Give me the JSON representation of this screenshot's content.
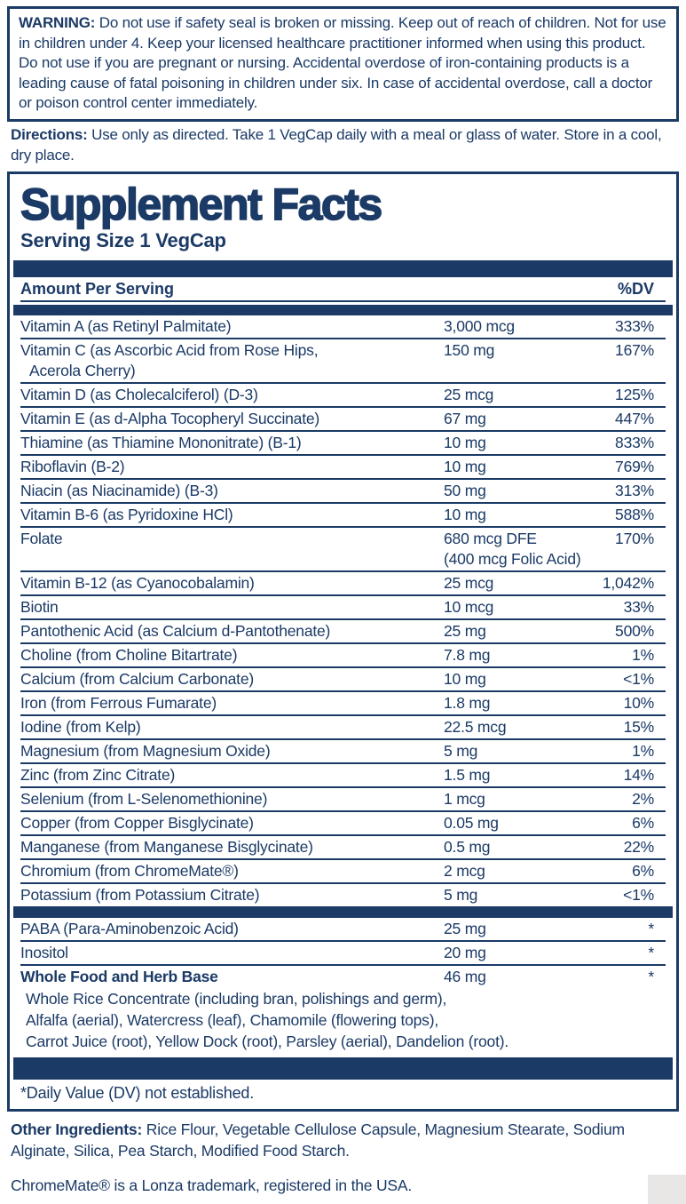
{
  "colors": {
    "navy": "#1b3a66",
    "corner_swatch": "#e8e7e5"
  },
  "warning": {
    "label": "WARNING:",
    "text": "Do not use if safety seal is broken or missing. Keep out of reach of children. Not for use in children under 4. Keep your licensed healthcare practitioner informed when using this product. Do not use if you are pregnant or nursing. Accidental overdose of iron-containing products is a leading cause of fatal poisoning in children under six. In case of accidental overdose, call a doctor or poison control center immediately."
  },
  "directions": {
    "label": "Directions:",
    "text": "Use only as directed. Take 1 VegCap daily with a meal or glass of water. Store in a cool, dry place."
  },
  "supplement_facts": {
    "title": "Supplement Facts",
    "serving_size": "Serving Size 1 VegCap",
    "header": {
      "amount_per_serving": "Amount Per Serving",
      "dv": "%DV"
    },
    "rows": [
      {
        "name": [
          "Vitamin A (as Retinyl Palmitate)"
        ],
        "amount": [
          "3,000 mcg"
        ],
        "dv": "333%"
      },
      {
        "name": [
          "Vitamin C (as Ascorbic Acid from Rose Hips,",
          "Acerola Cherry)"
        ],
        "amount": [
          "150 mg"
        ],
        "dv": "167%"
      },
      {
        "name": [
          "Vitamin D (as Cholecalciferol) (D-3)"
        ],
        "amount": [
          "25 mcg"
        ],
        "dv": "125%"
      },
      {
        "name": [
          "Vitamin E (as d-Alpha Tocopheryl Succinate)"
        ],
        "amount": [
          "67 mg"
        ],
        "dv": "447%"
      },
      {
        "name": [
          "Thiamine (as Thiamine Mononitrate) (B-1)"
        ],
        "amount": [
          "10 mg"
        ],
        "dv": "833%"
      },
      {
        "name": [
          "Riboflavin (B-2)"
        ],
        "amount": [
          "10 mg"
        ],
        "dv": "769%"
      },
      {
        "name": [
          "Niacin (as Niacinamide) (B-3)"
        ],
        "amount": [
          "50 mg"
        ],
        "dv": "313%"
      },
      {
        "name": [
          "Vitamin B-6 (as Pyridoxine HCl)"
        ],
        "amount": [
          "10 mg"
        ],
        "dv": "588%"
      },
      {
        "name": [
          "Folate"
        ],
        "amount": [
          "680 mcg DFE",
          "(400 mcg Folic Acid)"
        ],
        "dv": "170%"
      },
      {
        "name": [
          "Vitamin B-12 (as Cyanocobalamin)"
        ],
        "amount": [
          "25 mcg"
        ],
        "dv": "1,042%"
      },
      {
        "name": [
          "Biotin"
        ],
        "amount": [
          "10 mcg"
        ],
        "dv": "33%"
      },
      {
        "name": [
          "Pantothenic Acid (as Calcium d-Pantothenate)"
        ],
        "amount": [
          "25 mg"
        ],
        "dv": "500%"
      },
      {
        "name": [
          "Choline (from Choline Bitartrate)"
        ],
        "amount": [
          "7.8 mg"
        ],
        "dv": "1%"
      },
      {
        "name": [
          "Calcium (from Calcium Carbonate)"
        ],
        "amount": [
          "10 mg"
        ],
        "dv": "<1%"
      },
      {
        "name": [
          "Iron (from Ferrous Fumarate)"
        ],
        "amount": [
          "1.8 mg"
        ],
        "dv": "10%"
      },
      {
        "name": [
          "Iodine (from Kelp)"
        ],
        "amount": [
          "22.5 mcg"
        ],
        "dv": "15%"
      },
      {
        "name": [
          "Magnesium (from Magnesium Oxide)"
        ],
        "amount": [
          "5 mg"
        ],
        "dv": "1%"
      },
      {
        "name": [
          "Zinc (from Zinc Citrate)"
        ],
        "amount": [
          "1.5 mg"
        ],
        "dv": "14%"
      },
      {
        "name": [
          "Selenium (from L-Selenomethionine)"
        ],
        "amount": [
          "1 mcg"
        ],
        "dv": "2%"
      },
      {
        "name": [
          "Copper (from Copper Bisglycinate)"
        ],
        "amount": [
          "0.05 mg"
        ],
        "dv": "6%"
      },
      {
        "name": [
          "Manganese (from Manganese Bisglycinate)"
        ],
        "amount": [
          "0.5 mg"
        ],
        "dv": "22%"
      },
      {
        "name": [
          "Chromium (from ChromeMate®)"
        ],
        "amount": [
          "2 mcg"
        ],
        "dv": "6%"
      },
      {
        "name": [
          "Potassium (from Potassium Citrate)"
        ],
        "amount": [
          "5 mg"
        ],
        "dv": "<1%"
      }
    ],
    "other_rows": [
      {
        "name": [
          "PABA (Para-Aminobenzoic Acid)"
        ],
        "amount": [
          "25 mg"
        ],
        "dv": "*"
      },
      {
        "name": [
          "Inositol"
        ],
        "amount": [
          "20 mg"
        ],
        "dv": "*"
      },
      {
        "bold": true,
        "name": [
          "Whole Food and Herb Base"
        ],
        "amount": [
          "46 mg"
        ],
        "dv": "*",
        "subs": [
          "Whole Rice Concentrate (including bran, polishings and germ),",
          "Alfalfa (aerial), Watercress (leaf), Chamomile (flowering tops),",
          "Carrot Juice (root), Yellow Dock (root), Parsley (aerial), Dandelion (root)."
        ]
      }
    ],
    "footnote": "*Daily Value (DV) not established."
  },
  "other_ingredients": {
    "label": "Other Ingredients:",
    "text": "Rice Flour, Vegetable Cellulose Capsule, Magnesium Stearate, Sodium Alginate, Silica, Pea Starch, Modified Food Starch."
  },
  "trademark": "ChromeMate® is a Lonza trademark, registered in the USA."
}
